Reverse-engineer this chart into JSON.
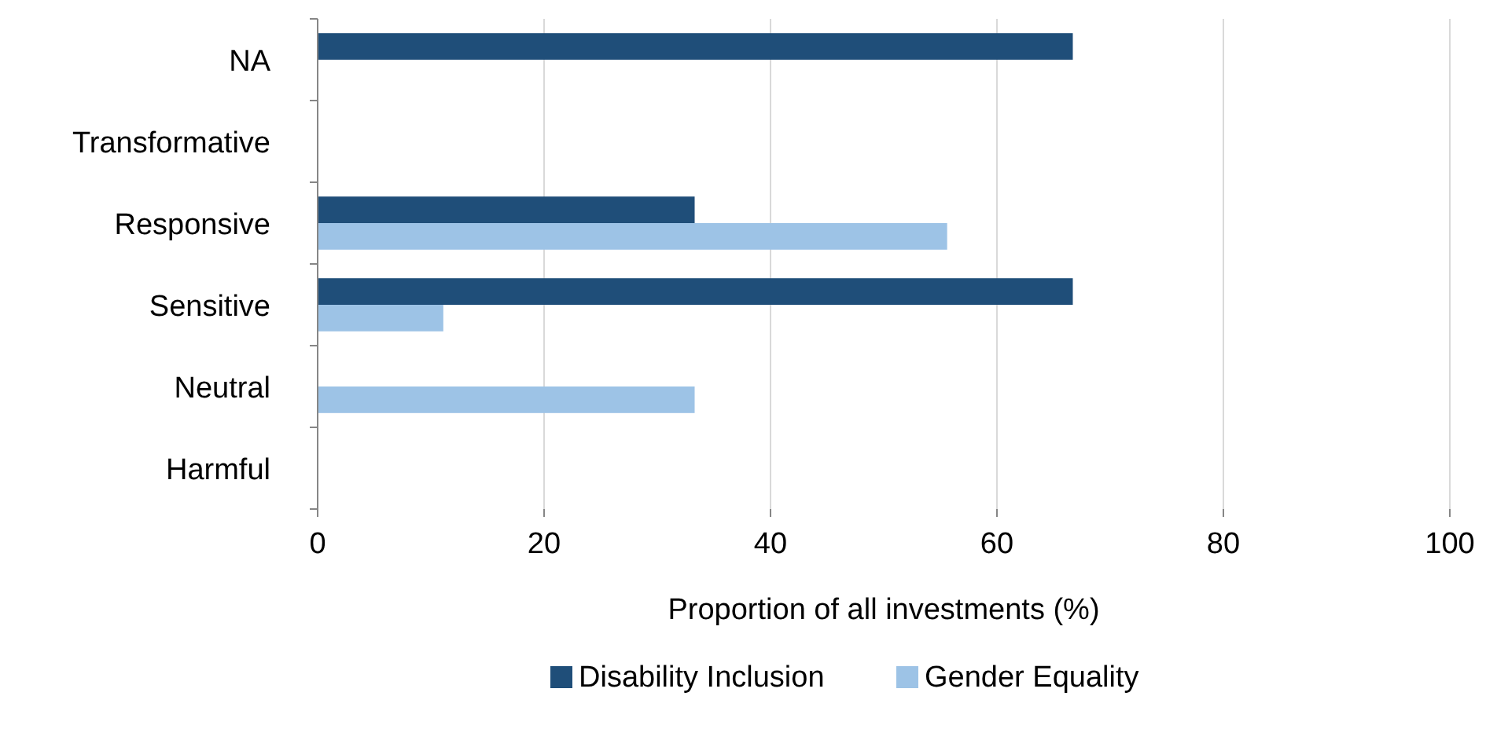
{
  "chart_data": {
    "type": "bar",
    "orientation": "horizontal",
    "xlabel": "Proportion of all investments (%)",
    "categories": [
      "NA",
      "Transformative",
      "Responsive",
      "Sensitive",
      "Neutral",
      "Harmful"
    ],
    "series": [
      {
        "name": "Disability Inclusion",
        "color": "#1f4e79",
        "values": [
          66.7,
          null,
          33.3,
          66.7,
          null,
          null
        ]
      },
      {
        "name": "Gender Equality",
        "color": "#9dc3e6",
        "values": [
          null,
          null,
          55.6,
          11.1,
          33.3,
          null
        ]
      }
    ],
    "xlim": [
      0,
      100
    ],
    "xticks": [
      0,
      20,
      40,
      60,
      80,
      100
    ],
    "grid": "x",
    "legend": "bottom"
  }
}
